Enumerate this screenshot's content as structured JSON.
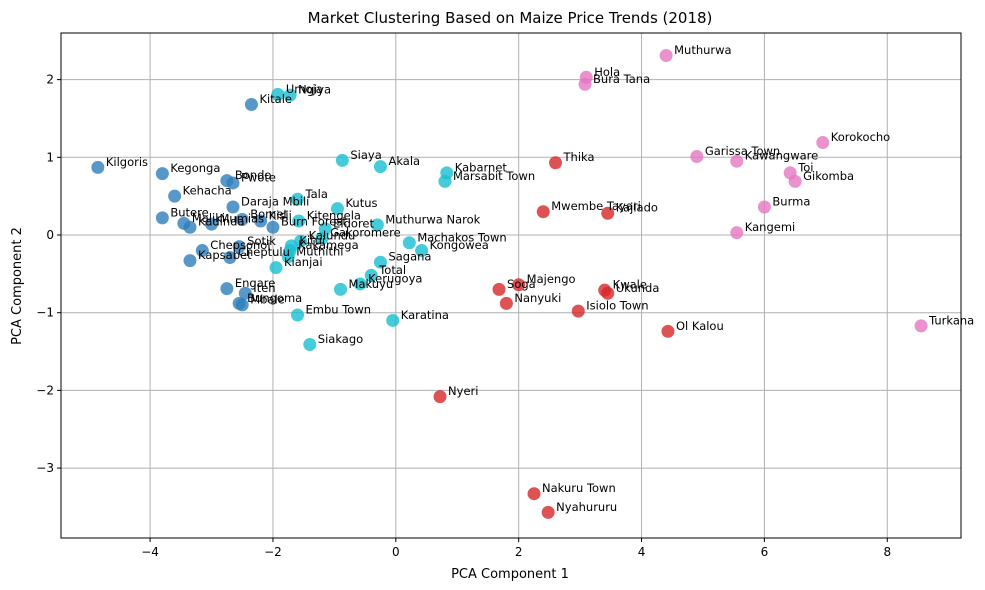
{
  "chart_data": {
    "type": "scatter",
    "title": "Market Clustering Based on Maize Price Trends (2018)",
    "xlabel": "PCA Component 1",
    "ylabel": "PCA Component 2",
    "xlim": [
      -5.45,
      9.2
    ],
    "ylim": [
      -3.9,
      2.6
    ],
    "x_ticks": [
      -4,
      -2,
      0,
      2,
      4,
      6,
      8
    ],
    "y_ticks": [
      -3,
      -2,
      -1,
      0,
      1,
      2
    ],
    "x_tick_labels": [
      "−4",
      "−2",
      "0",
      "2",
      "4",
      "6",
      "8"
    ],
    "y_tick_labels": [
      "−3",
      "−2",
      "−1",
      "0",
      "1",
      "2"
    ],
    "grid": true,
    "cluster_colors": {
      "0": "#2e7ebb",
      "1": "#d62728",
      "2": "#17becf",
      "3": "#e377c2"
    },
    "points": [
      {
        "label": "Kilgoris",
        "x": -4.85,
        "y": 0.87,
        "cluster": 0
      },
      {
        "label": "Kegonga",
        "x": -3.8,
        "y": 0.79,
        "cluster": 0
      },
      {
        "label": "Kehacha",
        "x": -3.6,
        "y": 0.5,
        "cluster": 0
      },
      {
        "label": "Butere",
        "x": -3.8,
        "y": 0.22,
        "cluster": 0
      },
      {
        "label": "Maliki",
        "x": -3.45,
        "y": 0.15,
        "cluster": 0
      },
      {
        "label": "Kadinda",
        "x": -3.35,
        "y": 0.1,
        "cluster": 0
      },
      {
        "label": "Mumias",
        "x": -3.0,
        "y": 0.14,
        "cluster": 0
      },
      {
        "label": "Chepsonoi",
        "x": -3.15,
        "y": -0.2,
        "cluster": 0
      },
      {
        "label": "Kapsabet",
        "x": -3.35,
        "y": -0.33,
        "cluster": 0
      },
      {
        "label": "Bondo",
        "x": -2.75,
        "y": 0.7,
        "cluster": 0
      },
      {
        "label": "Kitale",
        "x": -2.35,
        "y": 1.68,
        "cluster": 0
      },
      {
        "label": "Daraja  Mbili",
        "x": -2.65,
        "y": 0.36,
        "cluster": 0
      },
      {
        "label": "Bomet",
        "x": -2.5,
        "y": 0.2,
        "cluster": 0
      },
      {
        "label": "Kisii",
        "x": -2.2,
        "y": 0.18,
        "cluster": 0
      },
      {
        "label": "Burn  Forest",
        "x": -2.0,
        "y": 0.1,
        "cluster": 0
      },
      {
        "label": "Sotik",
        "x": -2.55,
        "y": -0.15,
        "cluster": 0
      },
      {
        "label": "Cheptulu",
        "x": -2.7,
        "y": -0.29,
        "cluster": 0
      },
      {
        "label": "Engare",
        "x": -2.75,
        "y": -0.69,
        "cluster": 0
      },
      {
        "label": "Iten",
        "x": -2.45,
        "y": -0.75,
        "cluster": 0
      },
      {
        "label": "Bungoma",
        "x": -2.55,
        "y": -0.88,
        "cluster": 0
      },
      {
        "label": "Mbale",
        "x": -2.5,
        "y": -0.9,
        "cluster": 0
      },
      {
        "label": "Pwote",
        "x": -2.65,
        "y": 0.67,
        "cluster": 0
      },
      {
        "label": "Thika",
        "x": 2.6,
        "y": 0.93,
        "cluster": 1
      },
      {
        "label": "Mwembe  Tayari",
        "x": 2.4,
        "y": 0.3,
        "cluster": 1
      },
      {
        "label": "Kajiado",
        "x": 3.45,
        "y": 0.28,
        "cluster": 1
      },
      {
        "label": "Majengo",
        "x": 2.0,
        "y": -0.64,
        "cluster": 1
      },
      {
        "label": "Soga",
        "x": 1.68,
        "y": -0.7,
        "cluster": 1
      },
      {
        "label": "Nanyuki",
        "x": 1.8,
        "y": -0.88,
        "cluster": 1
      },
      {
        "label": "Isiolo  Town",
        "x": 2.97,
        "y": -0.98,
        "cluster": 1
      },
      {
        "label": "Kwale",
        "x": 3.4,
        "y": -0.71,
        "cluster": 1
      },
      {
        "label": "Ukunda",
        "x": 3.45,
        "y": -0.75,
        "cluster": 1
      },
      {
        "label": "Ol Kalou",
        "x": 4.43,
        "y": -1.24,
        "cluster": 1
      },
      {
        "label": "Nyeri",
        "x": 0.72,
        "y": -2.08,
        "cluster": 1
      },
      {
        "label": "Nakuru  Town",
        "x": 2.25,
        "y": -3.33,
        "cluster": 1
      },
      {
        "label": "Nyahururu",
        "x": 2.48,
        "y": -3.57,
        "cluster": 1
      },
      {
        "label": "Umoja",
        "x": -1.92,
        "y": 1.81,
        "cluster": 2
      },
      {
        "label": "Ngiya",
        "x": -1.72,
        "y": 1.8,
        "cluster": 2
      },
      {
        "label": "Siaya",
        "x": -0.87,
        "y": 0.96,
        "cluster": 2
      },
      {
        "label": "Akala",
        "x": -0.25,
        "y": 0.88,
        "cluster": 2
      },
      {
        "label": "Tala",
        "x": -1.6,
        "y": 0.46,
        "cluster": 2
      },
      {
        "label": "Kutus",
        "x": -0.95,
        "y": 0.34,
        "cluster": 2
      },
      {
        "label": "Kabarnet",
        "x": 0.83,
        "y": 0.8,
        "cluster": 2
      },
      {
        "label": "Marsabit Town",
        "x": 0.8,
        "y": 0.69,
        "cluster": 2
      },
      {
        "label": "Kitengela",
        "x": -1.58,
        "y": 0.18,
        "cluster": 2
      },
      {
        "label": "Eldoret",
        "x": -1.15,
        "y": 0.08,
        "cluster": 2
      },
      {
        "label": "Muthurwa  Narok",
        "x": -0.3,
        "y": 0.13,
        "cluster": 2
      },
      {
        "label": "Gakoromere",
        "x": -1.2,
        "y": -0.04,
        "cluster": 2
      },
      {
        "label": "Kalundu",
        "x": -1.55,
        "y": -0.08,
        "cluster": 2
      },
      {
        "label": "Kitui",
        "x": -1.7,
        "y": -0.14,
        "cluster": 2
      },
      {
        "label": "Kakamega",
        "x": -1.72,
        "y": -0.2,
        "cluster": 2
      },
      {
        "label": "Muthithi",
        "x": -1.75,
        "y": -0.28,
        "cluster": 2
      },
      {
        "label": "Kianjai",
        "x": -1.95,
        "y": -0.42,
        "cluster": 2
      },
      {
        "label": "Machakos Town",
        "x": 0.22,
        "y": -0.1,
        "cluster": 2
      },
      {
        "label": "Kongowea",
        "x": 0.42,
        "y": -0.2,
        "cluster": 2
      },
      {
        "label": "Sagana",
        "x": -0.25,
        "y": -0.35,
        "cluster": 2
      },
      {
        "label": "Total",
        "x": -0.4,
        "y": -0.52,
        "cluster": 2
      },
      {
        "label": "Kerugoya",
        "x": -0.58,
        "y": -0.63,
        "cluster": 2
      },
      {
        "label": "Makuyu",
        "x": -0.9,
        "y": -0.7,
        "cluster": 2
      },
      {
        "label": "Embu  Town",
        "x": -1.6,
        "y": -1.03,
        "cluster": 2
      },
      {
        "label": "Karatina",
        "x": -0.05,
        "y": -1.1,
        "cluster": 2
      },
      {
        "label": "Siakago",
        "x": -1.4,
        "y": -1.41,
        "cluster": 2
      },
      {
        "label": "Muthurwa",
        "x": 4.4,
        "y": 2.31,
        "cluster": 3
      },
      {
        "label": "Hola",
        "x": 3.1,
        "y": 2.03,
        "cluster": 3
      },
      {
        "label": "Bura  Tana",
        "x": 3.08,
        "y": 1.94,
        "cluster": 3
      },
      {
        "label": "Korokocho",
        "x": 6.95,
        "y": 1.19,
        "cluster": 3
      },
      {
        "label": "Garissa  Town",
        "x": 4.9,
        "y": 1.01,
        "cluster": 3
      },
      {
        "label": "Kawangware",
        "x": 5.55,
        "y": 0.95,
        "cluster": 3
      },
      {
        "label": "Toi",
        "x": 6.42,
        "y": 0.8,
        "cluster": 3
      },
      {
        "label": "Gikomba",
        "x": 6.5,
        "y": 0.69,
        "cluster": 3
      },
      {
        "label": "Burma",
        "x": 6.0,
        "y": 0.36,
        "cluster": 3
      },
      {
        "label": "Kangemi",
        "x": 5.55,
        "y": 0.03,
        "cluster": 3
      },
      {
        "label": "Turkana",
        "x": 8.55,
        "y": -1.17,
        "cluster": 3
      }
    ]
  }
}
